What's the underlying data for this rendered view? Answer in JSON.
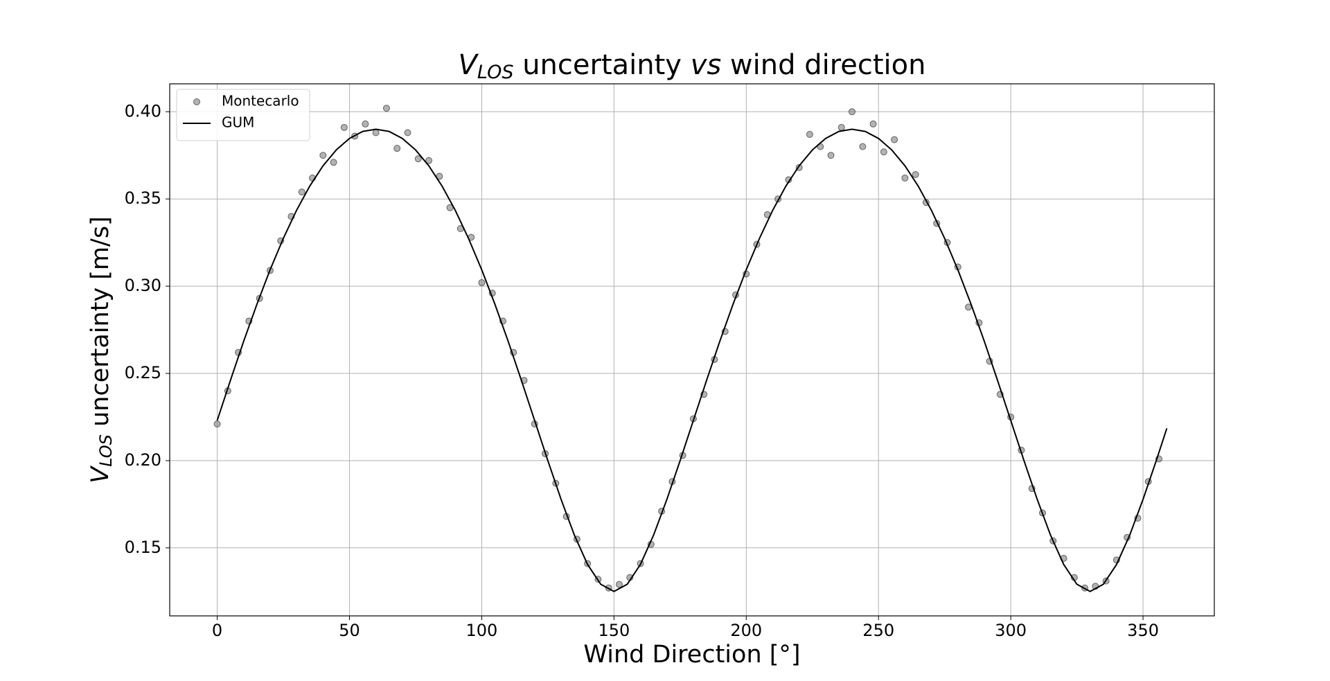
{
  "chart_data": {
    "type": "scatter",
    "title": {
      "symbol": "V",
      "subscript": "LOS",
      "text": " uncertainty ",
      "emphasis": "vs",
      "rest": " wind direction"
    },
    "xlabel": "Wind Direction [°]",
    "ylabel": {
      "symbol": "V",
      "subscript": "LOS",
      "text": " uncertainty [m/s]"
    },
    "xlim": [
      -17.95,
      376.95
    ],
    "ylim": [
      0.111,
      0.416
    ],
    "xticks": [
      0,
      50,
      100,
      150,
      200,
      250,
      300,
      350
    ],
    "yticks": [
      {
        "value": 0.15,
        "label": "0.15"
      },
      {
        "value": 0.2,
        "label": "0.20"
      },
      {
        "value": 0.25,
        "label": "0.25"
      },
      {
        "value": 0.3,
        "label": "0.30"
      },
      {
        "value": 0.35,
        "label": "0.35"
      },
      {
        "value": 0.4,
        "label": "0.40"
      }
    ],
    "grid": true,
    "legend": "upper left",
    "series": [
      {
        "name": "Montecarlo",
        "type": "scatter",
        "color": "#808080",
        "x": [
          0,
          4,
          8,
          12,
          16,
          20,
          24,
          28,
          32,
          36,
          40,
          44,
          48,
          52,
          56,
          60,
          64,
          68,
          72,
          76,
          80,
          84,
          88,
          92,
          96,
          100,
          104,
          108,
          112,
          116,
          120,
          124,
          128,
          132,
          136,
          140,
          144,
          148,
          152,
          156,
          160,
          164,
          168,
          172,
          176,
          180,
          184,
          188,
          192,
          196,
          200,
          204,
          208,
          212,
          216,
          220,
          224,
          228,
          232,
          236,
          240,
          244,
          248,
          252,
          256,
          260,
          264,
          268,
          272,
          276,
          280,
          284,
          288,
          292,
          296,
          300,
          304,
          308,
          312,
          316,
          320,
          324,
          328,
          332,
          336,
          340,
          344,
          348,
          352,
          356
        ],
        "values": [
          0.221,
          0.24,
          0.262,
          0.28,
          0.293,
          0.309,
          0.326,
          0.34,
          0.354,
          0.362,
          0.375,
          0.371,
          0.391,
          0.386,
          0.393,
          0.388,
          0.402,
          0.379,
          0.388,
          0.373,
          0.372,
          0.363,
          0.345,
          0.333,
          0.328,
          0.302,
          0.296,
          0.28,
          0.262,
          0.246,
          0.221,
          0.204,
          0.187,
          0.168,
          0.155,
          0.141,
          0.132,
          0.127,
          0.129,
          0.133,
          0.141,
          0.152,
          0.171,
          0.188,
          0.203,
          0.224,
          0.238,
          0.258,
          0.274,
          0.295,
          0.307,
          0.324,
          0.341,
          0.35,
          0.361,
          0.368,
          0.387,
          0.38,
          0.375,
          0.391,
          0.4,
          0.38,
          0.393,
          0.377,
          0.384,
          0.362,
          0.364,
          0.348,
          0.336,
          0.325,
          0.311,
          0.288,
          0.279,
          0.257,
          0.238,
          0.225,
          0.206,
          0.184,
          0.17,
          0.154,
          0.144,
          0.133,
          0.127,
          0.128,
          0.131,
          0.143,
          0.156,
          0.167,
          0.188,
          0.201
        ]
      },
      {
        "name": "GUM",
        "type": "line",
        "color": "#000000",
        "x": [
          0,
          5,
          10,
          15,
          20,
          25,
          30,
          35,
          40,
          45,
          50,
          55,
          60,
          65,
          70,
          75,
          80,
          85,
          90,
          95,
          100,
          105,
          110,
          115,
          120,
          125,
          130,
          135,
          140,
          145,
          150,
          155,
          160,
          165,
          170,
          175,
          180,
          185,
          190,
          195,
          200,
          205,
          210,
          215,
          220,
          225,
          230,
          235,
          240,
          245,
          250,
          255,
          260,
          265,
          270,
          275,
          280,
          285,
          290,
          295,
          300,
          305,
          310,
          315,
          320,
          325,
          330,
          335,
          340,
          345,
          350,
          355,
          359
        ],
        "values": [
          0.223,
          0.246,
          0.2684,
          0.2896,
          0.3094,
          0.3274,
          0.3435,
          0.3574,
          0.369,
          0.3781,
          0.3847,
          0.3887,
          0.39,
          0.3887,
          0.3847,
          0.3781,
          0.369,
          0.3574,
          0.3435,
          0.3274,
          0.3094,
          0.2896,
          0.2684,
          0.246,
          0.223,
          0.2,
          0.1778,
          0.1574,
          0.1405,
          0.1291,
          0.125,
          0.1291,
          0.1405,
          0.1574,
          0.1778,
          0.2,
          0.223,
          0.246,
          0.2684,
          0.2896,
          0.3094,
          0.3274,
          0.3435,
          0.3574,
          0.369,
          0.3781,
          0.3847,
          0.3887,
          0.39,
          0.3887,
          0.3847,
          0.3781,
          0.369,
          0.3574,
          0.3435,
          0.3274,
          0.3094,
          0.2896,
          0.2684,
          0.246,
          0.223,
          0.2,
          0.1778,
          0.1574,
          0.1405,
          0.1291,
          0.125,
          0.1291,
          0.1405,
          0.1574,
          0.1778,
          0.2,
          0.2185
        ]
      }
    ]
  }
}
